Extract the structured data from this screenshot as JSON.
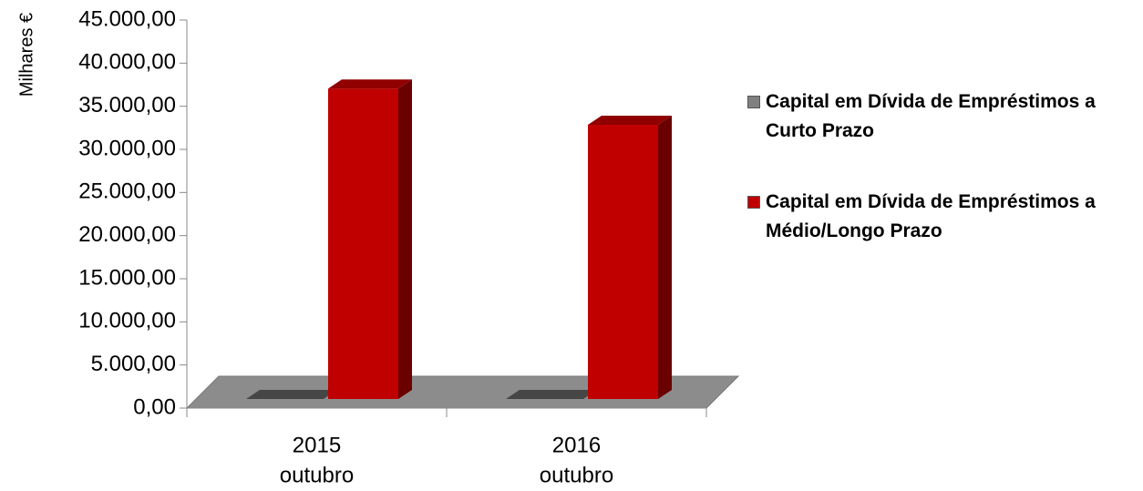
{
  "chart_data": {
    "type": "bar3d",
    "y_label": "Milhares €",
    "categories": [
      [
        "2015",
        "outubro"
      ],
      [
        "2016",
        "outubro"
      ]
    ],
    "series": [
      {
        "name": "Capital em Dívida de Empréstimos a Curto Prazo",
        "color": "#808080",
        "values": [
          0,
          0
        ]
      },
      {
        "name": "Capital em Dívida de Empréstimos a Médio/Longo Prazo",
        "color": "#c00000",
        "values": [
          36000,
          31800
        ]
      }
    ],
    "ylim": [
      0,
      45000
    ],
    "yticks": [
      {
        "value": 0,
        "label": "0,00"
      },
      {
        "value": 5000,
        "label": "5.000,00"
      },
      {
        "value": 10000,
        "label": "10.000,00"
      },
      {
        "value": 15000,
        "label": "15.000,00"
      },
      {
        "value": 20000,
        "label": "20.000,00"
      },
      {
        "value": 25000,
        "label": "25.000,00"
      },
      {
        "value": 30000,
        "label": "30.000,00"
      },
      {
        "value": 35000,
        "label": "35.000,00"
      },
      {
        "value": 40000,
        "label": "40.000,00"
      },
      {
        "value": 45000,
        "label": "45.000,00"
      }
    ],
    "legend": "right"
  }
}
